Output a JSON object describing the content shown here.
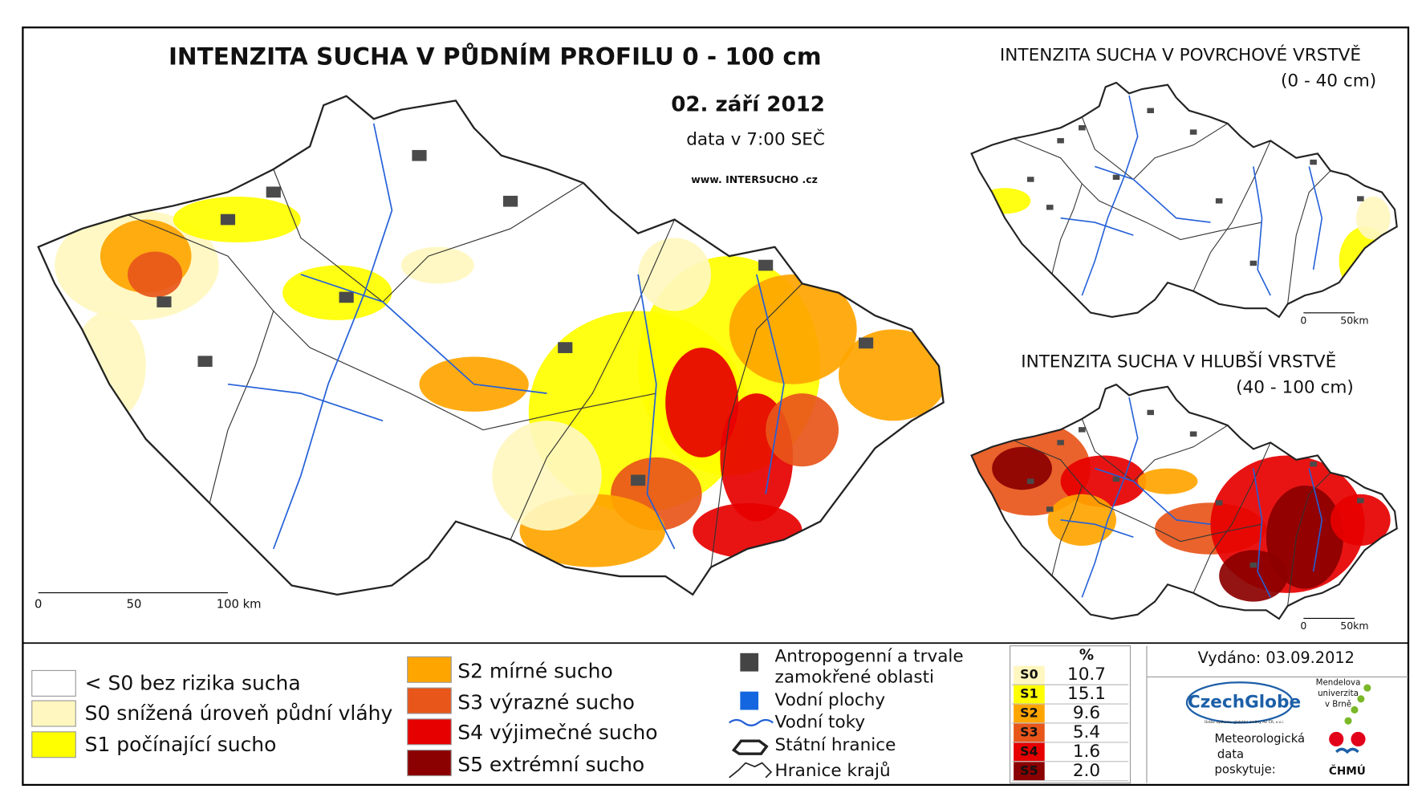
{
  "main_map": {
    "title": "INTENZITA SUCHA V PŮDNÍM PROFILU 0 - 100 cm",
    "date": "02. září 2012",
    "data_time": "data v 7:00 SEČ",
    "website": "www. INTERSUCHO .cz",
    "scale_labels": [
      "0",
      "50",
      "100 km"
    ]
  },
  "surface_map": {
    "title": "INTENZITA SUCHA V POVRCHOVÉ VRSTVĚ",
    "depth": "(0 - 40 cm)",
    "scale_labels": [
      "0",
      "50km"
    ]
  },
  "deep_map": {
    "title": "INTENZITA SUCHA V HLUBŠÍ VRSTVĚ",
    "depth": "(40 - 100 cm)",
    "scale_labels": [
      "0",
      "50km"
    ]
  },
  "legend": {
    "classes": [
      {
        "label": "< S0 bez rizika sucha",
        "color": "#ffffff"
      },
      {
        "label": "S0 snížená úroveň půdní vláhy",
        "color": "#fff7bf"
      },
      {
        "label": "S1 počínající sucho",
        "color": "#ffff00"
      },
      {
        "label": "S2 mírné sucho",
        "color": "#ffa500"
      },
      {
        "label": "S3 výrazné sucho",
        "color": "#e8561a"
      },
      {
        "label": "S4 výjimečné sucho",
        "color": "#e60000"
      },
      {
        "label": "S5 extrémní sucho",
        "color": "#8b0000"
      }
    ],
    "features": [
      {
        "label": [
          "Antropogenní a trvale",
          "zamokřené oblasti"
        ]
      },
      {
        "label": [
          "Vodní plochy"
        ]
      },
      {
        "label": [
          "Vodní toky"
        ]
      },
      {
        "label": [
          "Státní hranice"
        ]
      },
      {
        "label": [
          "Hranice krajů"
        ]
      }
    ]
  },
  "stats": {
    "header": "%",
    "rows": [
      [
        "S0",
        "10.7"
      ],
      [
        "S1",
        "15.1"
      ],
      [
        "S2",
        "9.6"
      ],
      [
        "S3",
        "5.4"
      ],
      [
        "S4",
        "1.6"
      ],
      [
        "S5",
        "2.0"
      ]
    ]
  },
  "footer": {
    "issued": "Vydáno: 03.09.2012",
    "czechglobe": "CzechGlobe",
    "czechglobe_sub": "Ústav výzkumu globální změny AV ČR, v.v.i.",
    "mendel": [
      "Mendelova",
      "univerzita",
      "v Brně"
    ],
    "provider": [
      "Meteorologická",
      "data",
      "poskytuje:"
    ],
    "chmu": "ČHMÚ"
  }
}
